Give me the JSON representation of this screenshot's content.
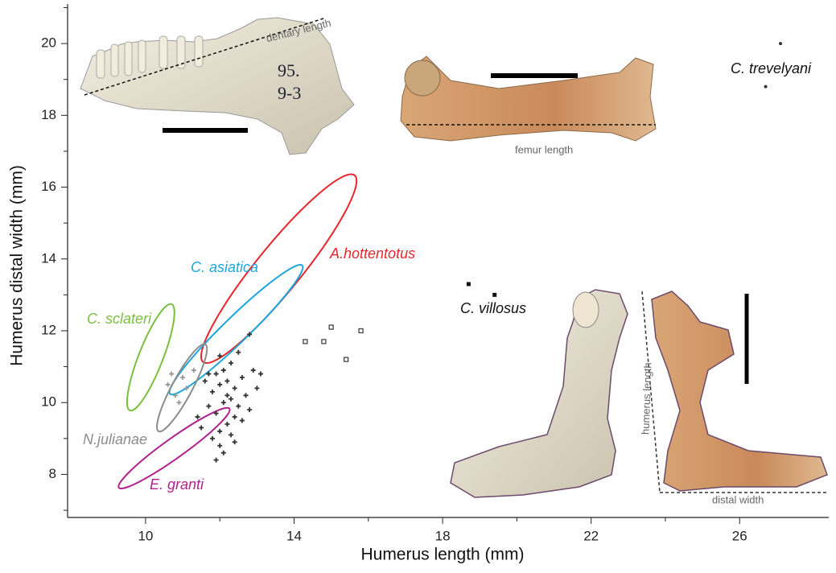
{
  "chart_data": {
    "type": "scatter",
    "x_label": "Humerus length (mm)",
    "y_label": "Humerus distal width (mm)",
    "xlim": [
      7.9,
      28.4
    ],
    "ylim": [
      6.8,
      21.1
    ],
    "xticks": [
      10,
      14,
      18,
      22,
      26
    ],
    "xticks_minor": [
      12,
      16,
      20,
      24
    ],
    "yticks": [
      8,
      10,
      12,
      14,
      16,
      18,
      20
    ],
    "yticks_minor": [
      7,
      9,
      11,
      13,
      15,
      17,
      19,
      21
    ],
    "ellipses": [
      {
        "name": "A.hottentotus",
        "color": "#e8262b",
        "center": [
          13.59,
          13.73
        ],
        "major_end": [
          15.63,
          16.33
        ],
        "minor_end": [
          14.07,
          13.35
        ]
      },
      {
        "name": "C. asiatica",
        "color": "#1ba6e0",
        "center": [
          12.44,
          12.03
        ],
        "major_end": [
          14.22,
          13.82
        ],
        "minor_end": [
          12.68,
          11.78
        ]
      },
      {
        "name": "C. sclateri",
        "color": "#7bbf3f",
        "center": [
          10.14,
          11.26
        ],
        "major_end": [
          10.7,
          12.74
        ],
        "minor_end": [
          10.44,
          11.13
        ]
      },
      {
        "name": "N.julianae",
        "color": "#8c8c8c",
        "center": [
          10.98,
          10.41
        ],
        "major_end": [
          11.61,
          11.62
        ],
        "minor_end": [
          11.22,
          10.28
        ]
      },
      {
        "name": "E. granti",
        "color": "#b2218c",
        "center": [
          10.77,
          8.73
        ],
        "major_end": [
          12.26,
          9.83
        ],
        "minor_end": [
          10.92,
          8.5
        ]
      }
    ],
    "series": [
      {
        "name": "C. villosus",
        "color": "#111111",
        "marker": "square",
        "x": [
          18.7,
          19.4
        ],
        "y": [
          13.3,
          13.0
        ]
      },
      {
        "name": "C. trevelyani",
        "color": "#333333",
        "marker": "dot",
        "x": [
          27.1,
          26.7
        ],
        "y": [
          20.0,
          18.8
        ]
      }
    ],
    "unnamed_points": [
      {
        "color": "#333333",
        "marker": "cross",
        "x": [
          12.8,
          12.5,
          12.3,
          12.1,
          11.9,
          12.2,
          12.6,
          12.9,
          13.1,
          12.4,
          12.0,
          11.8,
          11.6,
          12.3,
          12.7,
          13.0,
          12.5,
          12.1,
          11.9,
          12.4,
          12.8,
          11.7,
          12.2,
          12.0,
          12.6,
          11.5,
          12.3,
          11.8,
          12.0,
          12.4,
          11.4,
          12.1,
          11.9,
          12.2,
          11.7,
          12.0
        ],
        "y": [
          11.9,
          11.4,
          11.1,
          10.9,
          10.8,
          10.6,
          10.7,
          10.9,
          10.8,
          10.4,
          10.5,
          10.3,
          10.6,
          10.1,
          10.2,
          10.4,
          9.9,
          10.0,
          9.7,
          9.6,
          9.8,
          9.9,
          9.4,
          9.2,
          9.5,
          9.3,
          9.1,
          9.0,
          8.8,
          8.9,
          9.6,
          8.6,
          8.4,
          10.2,
          10.8,
          11.3
        ]
      },
      {
        "color": "#999999",
        "marker": "cross",
        "x": [
          10.6,
          10.8,
          11.0,
          11.3,
          10.9,
          11.1,
          10.7
        ],
        "y": [
          10.5,
          10.2,
          10.7,
          10.9,
          10.0,
          10.4,
          10.8
        ]
      },
      {
        "color": "#444444",
        "marker": "hollow-square",
        "x": [
          14.3,
          14.8,
          15.0,
          15.4,
          15.8
        ],
        "y": [
          11.7,
          11.7,
          12.1,
          11.2,
          12.0
        ]
      }
    ],
    "annotations": [
      "dentary length",
      "femur length",
      "humerus length",
      "distal width"
    ]
  }
}
